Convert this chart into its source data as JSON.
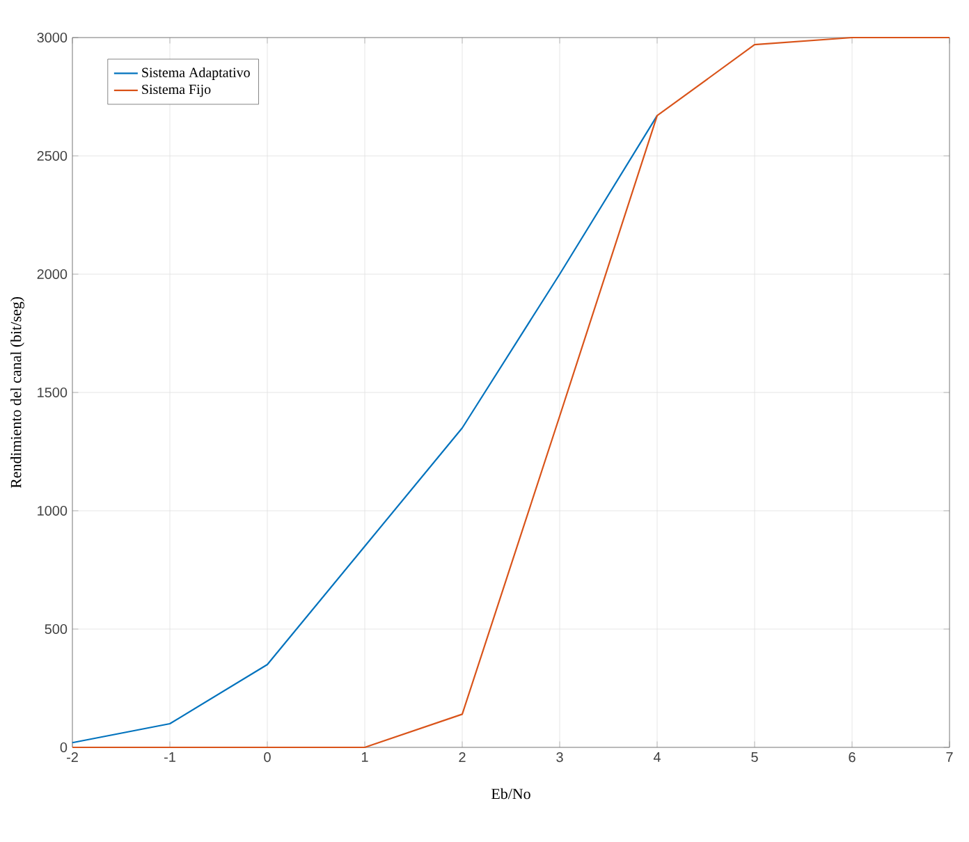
{
  "chart_data": {
    "type": "line",
    "xlabel": "Eb/No",
    "ylabel": "Rendimiento del canal (bit/seg)",
    "x": [
      -2,
      -1,
      0,
      1,
      2,
      3,
      4,
      5,
      6,
      7
    ],
    "series": [
      {
        "name": "Sistema Adaptativo",
        "color": "#0072bd",
        "values": [
          20,
          100,
          350,
          850,
          1350,
          2000,
          2670,
          null,
          null,
          null
        ]
      },
      {
        "name": "Sistema Fijo",
        "color": "#d95319",
        "values": [
          0,
          0,
          0,
          0,
          140,
          1400,
          2670,
          2970,
          3000,
          3000
        ]
      }
    ],
    "xlim": [
      -2,
      7
    ],
    "ylim": [
      0,
      3000
    ],
    "xticks": [
      -2,
      -1,
      0,
      1,
      2,
      3,
      4,
      5,
      6,
      7
    ],
    "yticks": [
      0,
      500,
      1000,
      1500,
      2000,
      2500,
      3000
    ],
    "grid": true,
    "legend": "top left",
    "marker": "none",
    "line_style": "solid"
  }
}
